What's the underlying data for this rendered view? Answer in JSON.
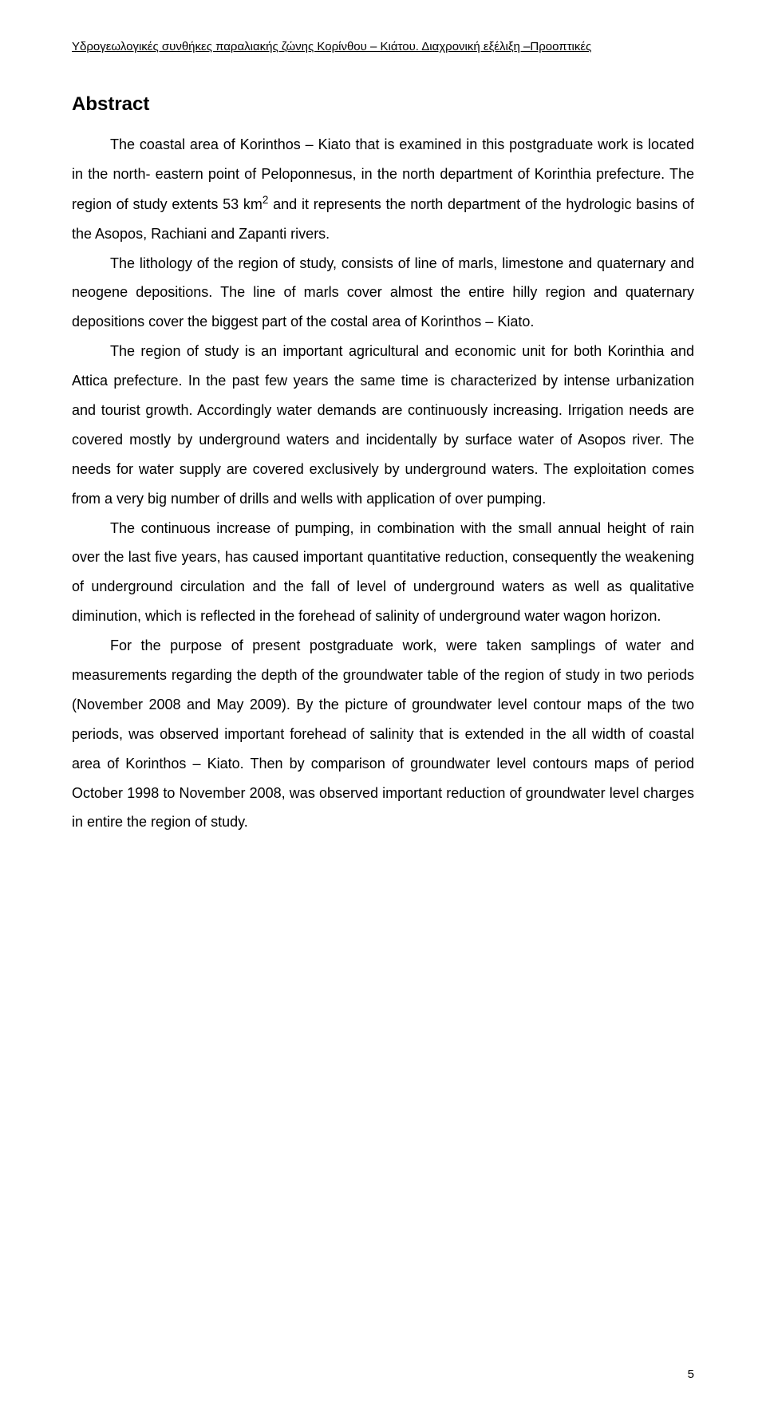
{
  "header": {
    "text": "Υδρογεωλογικές συνθήκες παραλιακής ζώνης Κορίνθου – Κιάτου. Διαχρονική εξέλιξη –Προοπτικές"
  },
  "abstract": {
    "title": "Abstract",
    "paragraphs": [
      {
        "segments": [
          {
            "text": "The coastal area of Korinthos – Kiato that is examined in this postgraduate work is located in the north- eastern point of Peloponnesus, in the north department of Korinthia prefecture. The region of study extents 53 km"
          },
          {
            "text": "2",
            "sup": true
          },
          {
            "text": " and it represents the north department of the hydrologic basins of the Asopos, Rachiani and Zapanti rivers."
          }
        ]
      },
      {
        "segments": [
          {
            "text": "The lithology of the region of study, consists of line of marls, limestone and quaternary and neogene depositions. The line of marls cover almost the entire hilly region and quaternary depositions cover the biggest part of the costal area of Korinthos – Kiato."
          }
        ]
      },
      {
        "segments": [
          {
            "text": "The region of study is an important agricultural and economic unit for both Korinthia and Attica prefecture. In the past few years the same time is characterized by intense urbanization and tourist growth. Accordingly water demands are continuously increasing. Irrigation needs are covered mostly by underground waters and incidentally by surface water of Asopos river. The needs for water supply are covered exclusively by underground waters. The exploitation comes from a very big number of drills and wells with application of over pumping."
          }
        ]
      },
      {
        "segments": [
          {
            "text": "The continuous increase of pumping, in combination with the small annual height of rain over the last five years, has caused important quantitative reduction, consequently the weakening of underground circulation and the fall of level of underground waters as well as qualitative diminution, which is reflected in the forehead of salinity of underground water wagon horizon."
          }
        ]
      },
      {
        "segments": [
          {
            "text": "For the purpose of present postgraduate work, were taken samplings of water and measurements regarding the depth of the groundwater table of the region of study in two periods (November 2008 and May 2009). By the picture of groundwater level contour maps of the two periods, was observed important forehead of salinity that is extended in the all width of coastal area of Korinthos – Kiato. Then by comparison of groundwater level contours maps of period October 1998 to November 2008, was observed important reduction of groundwater level charges in entire the region of study."
          }
        ]
      }
    ]
  },
  "page_number": "5",
  "styling": {
    "background_color": "#ffffff",
    "text_color": "#000000",
    "header_fontsize": 15,
    "title_fontsize": 24,
    "body_fontsize": 18,
    "line_height": 2.05,
    "font_family": "Arial"
  }
}
